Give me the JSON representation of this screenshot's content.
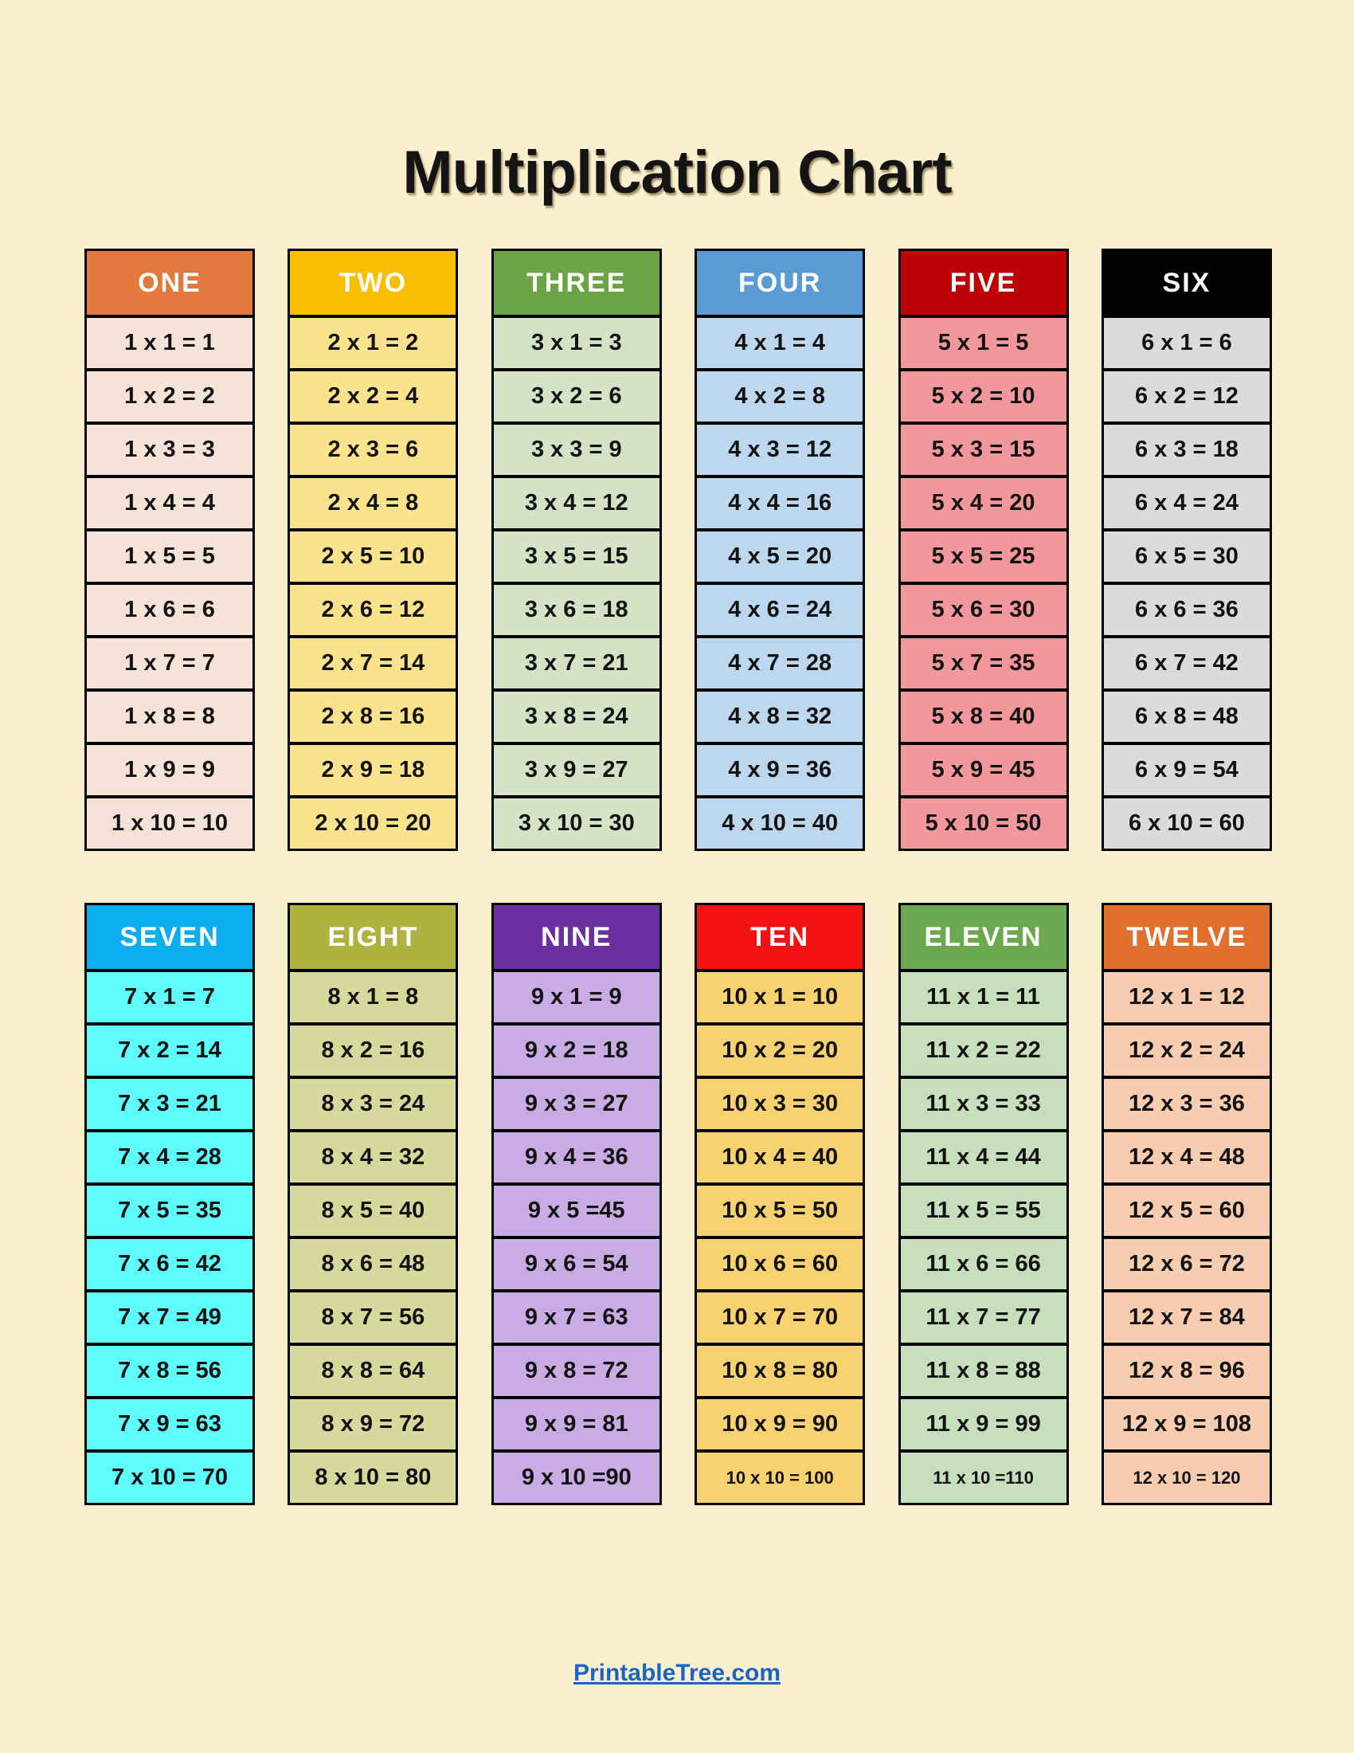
{
  "page": {
    "title": "Multiplication Chart",
    "background": "#FAF0CD"
  },
  "footer": {
    "link_label": "PrintableTree.com",
    "link_color": "#1B63C5"
  },
  "tables": [
    {
      "name": "ONE",
      "header_bg": "#E17A3C",
      "header_text_color": "#FFFFFF",
      "cell_bg": "#F6E3D7",
      "rows": [
        "1 x 1 = 1",
        "1 x 2 = 2",
        "1 x 3 = 3",
        "1 x 4 = 4",
        "1 x 5 = 5",
        "1 x 6 = 6",
        "1 x 7 = 7",
        "1 x 8 = 8",
        "1 x 9 = 9",
        "1 x 10 = 10"
      ],
      "small_rows": []
    },
    {
      "name": "TWO",
      "header_bg": "#F9BE00",
      "header_text_color": "#FFFFFF",
      "cell_bg": "#FBE28C",
      "rows": [
        "2 x 1 = 2",
        "2 x 2 = 4",
        "2 x 3 = 6",
        "2 x 4 = 8",
        "2 x 5 = 10",
        "2 x 6 = 12",
        "2 x 7 = 14",
        "2 x 8 = 16",
        "2 x 9 = 18",
        "2 x 10 = 20"
      ],
      "small_rows": []
    },
    {
      "name": "THREE",
      "header_bg": "#6CA344",
      "header_text_color": "#FFFFFF",
      "cell_bg": "#D4E2C6",
      "rows": [
        "3 x 1 = 3",
        "3 x 2 = 6",
        "3 x 3 = 9",
        "3 x 4 = 12",
        "3 x 5 = 15",
        "3 x 6 = 18",
        "3 x 7 = 21",
        "3 x 8 = 24",
        "3 x 9 = 27",
        "3 x 10 = 30"
      ],
      "small_rows": []
    },
    {
      "name": "FOUR",
      "header_bg": "#5B9BD5",
      "header_text_color": "#FFFFFF",
      "cell_bg": "#BDD7EE",
      "rows": [
        "4 x 1 = 4",
        "4 x 2 = 8",
        "4 x 3 = 12",
        "4 x 4 = 16",
        "4 x 5 = 20",
        "4 x 6 = 24",
        "4 x 7 = 28",
        "4 x 8 = 32",
        "4 x 9 = 36",
        "4 x 10 = 40"
      ],
      "small_rows": []
    },
    {
      "name": "FIVE",
      "header_bg": "#BD0305",
      "header_text_color": "#FFFFFF",
      "cell_bg": "#F2989D",
      "rows": [
        "5 x 1 = 5",
        "5 x 2 = 10",
        "5 x 3 = 15",
        "5 x 4 = 20",
        "5 x 5 = 25",
        "5 x 6 = 30",
        "5 x 7 = 35",
        "5 x 8 = 40",
        "5 x 9 = 45",
        "5 x 10 = 50"
      ],
      "small_rows": []
    },
    {
      "name": "SIX",
      "header_bg": "#000000",
      "header_text_color": "#FFFFFF",
      "cell_bg": "#DBDBDB",
      "rows": [
        "6 x 1 = 6",
        "6 x 2 = 12",
        "6 x 3 = 18",
        "6 x 4 = 24",
        "6 x 5 = 30",
        "6 x 6 = 36",
        "6 x 7 = 42",
        "6 x 8 = 48",
        "6 x 9 = 54",
        "6 x 10 = 60"
      ],
      "small_rows": []
    },
    {
      "name": "SEVEN",
      "header_bg": "#0AAEEF",
      "header_text_color": "#FFFFFF",
      "cell_bg": "#5EFCFA",
      "rows": [
        "7 x 1 = 7",
        "7 x 2 = 14",
        "7 x 3 = 21",
        "7 x 4 = 28",
        "7 x 5 = 35",
        "7 x 6 = 42",
        "7 x 7 = 49",
        "7 x 8 = 56",
        "7 x 9 = 63",
        "7 x 10 = 70"
      ],
      "small_rows": []
    },
    {
      "name": "EIGHT",
      "header_bg": "#AEB23E",
      "header_text_color": "#FFFFFF",
      "cell_bg": "#D7D99C",
      "rows": [
        "8 x 1 = 8",
        "8 x 2 = 16",
        "8 x 3 = 24",
        "8 x 4 = 32",
        "8 x 5 = 40",
        "8 x 6 = 48",
        "8 x 7 = 56",
        "8 x 8 = 64",
        "8 x 9 = 72",
        "8 x 10 = 80"
      ],
      "small_rows": []
    },
    {
      "name": "NINE",
      "header_bg": "#6C2F9F",
      "header_text_color": "#FFFFFF",
      "cell_bg": "#C9ACE3",
      "rows": [
        "9 x 1 = 9",
        "9 x 2 = 18",
        "9 x 3 = 27",
        "9 x 4 = 36",
        "9 x 5 =45",
        "9 x 6 = 54",
        "9 x 7 = 63",
        "9 x 8 = 72",
        "9 x 9 = 81",
        "9 x 10 =90"
      ],
      "small_rows": []
    },
    {
      "name": "TEN",
      "header_bg": "#F51111",
      "header_text_color": "#FFFFFF",
      "cell_bg": "#F8D170",
      "rows": [
        "10 x 1 = 10",
        "10 x 2 = 20",
        "10 x 3 = 30",
        "10 x 4 = 40",
        "10 x 5 = 50",
        "10 x 6 = 60",
        "10 x 7 = 70",
        "10 x 8 = 80",
        "10 x 9 = 90",
        "10 x 10 = 100"
      ],
      "small_rows": [
        9
      ]
    },
    {
      "name": "ELEVEN",
      "header_bg": "#6CA84E",
      "header_text_color": "#FFFFFF",
      "cell_bg": "#C7DFBD",
      "rows": [
        "11 x 1 = 11",
        "11 x 2 = 22",
        "11 x 3 = 33",
        "11 x 4 = 44",
        "11 x 5 = 55",
        "11 x 6 = 66",
        "11 x 7 = 77",
        "11 x 8 = 88",
        "11 x 9 = 99",
        "11 x 10 =110"
      ],
      "small_rows": [
        9
      ]
    },
    {
      "name": "TWELVE",
      "header_bg": "#E2702D",
      "header_text_color": "#FFFFFF",
      "cell_bg": "#F7CDB2",
      "rows": [
        "12 x 1 = 12",
        "12 x 2 = 24",
        "12 x 3 = 36",
        "12 x 4 = 48",
        "12 x 5 = 60",
        "12 x 6 = 72",
        "12 x 7 = 84",
        "12 x 8 = 96",
        "12 x 9 = 108",
        "12 x 10 = 120"
      ],
      "small_rows": [
        9
      ]
    }
  ]
}
